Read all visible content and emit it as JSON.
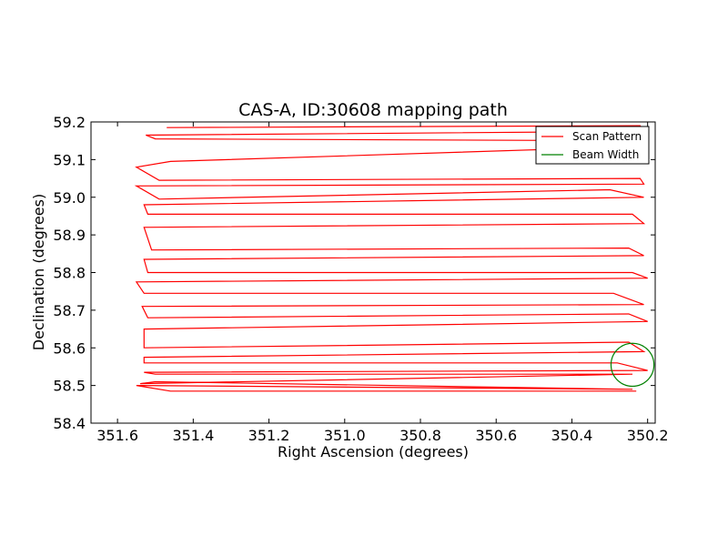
{
  "chart_data": {
    "type": "line",
    "title": "CAS-A, ID:30608 mapping path",
    "xlabel": "Right Ascension (degrees)",
    "ylabel": "Declination (degrees)",
    "xlim": [
      351.67,
      350.18
    ],
    "ylim": [
      58.4,
      59.2
    ],
    "x_ticks": [
      351.6,
      351.4,
      351.2,
      351.0,
      350.8,
      350.6,
      350.4,
      350.2
    ],
    "x_tick_labels": [
      "351.6",
      "351.4",
      "351.2",
      "351.0",
      "350.8",
      "350.6",
      "350.4",
      "350.2"
    ],
    "y_ticks": [
      58.4,
      58.5,
      58.6,
      58.7,
      58.8,
      58.9,
      59.0,
      59.1,
      59.2
    ],
    "y_tick_labels": [
      "58.4",
      "58.5",
      "58.6",
      "58.7",
      "58.8",
      "58.9",
      "59.0",
      "59.1",
      "59.2"
    ],
    "grid": false,
    "legend": {
      "position": "top-right",
      "entries": [
        "Scan Pattern",
        "Beam Width"
      ]
    },
    "colors": {
      "scan": "#ff0000",
      "beam": "#008000"
    },
    "series": [
      {
        "name": "Scan Pattern",
        "x": [
          351.47,
          350.22,
          350.21,
          351.525,
          351.5,
          350.22,
          350.22,
          351.46,
          351.55,
          351.49,
          350.22,
          350.21,
          351.55,
          351.49,
          350.3,
          350.21,
          351.53,
          351.52,
          350.24,
          350.21,
          351.53,
          351.51,
          350.25,
          350.21,
          351.53,
          351.52,
          350.24,
          350.2,
          351.55,
          351.53,
          350.29,
          350.21,
          351.535,
          351.52,
          350.25,
          350.2,
          351.53,
          351.53,
          350.25,
          350.21,
          351.53,
          351.53,
          350.28,
          350.2,
          351.53,
          351.5,
          350.24,
          351.54,
          351.5,
          350.24,
          351.55,
          351.46,
          350.23
        ],
        "y": [
          59.185,
          59.19,
          59.175,
          59.165,
          59.155,
          59.15,
          59.135,
          59.095,
          59.08,
          59.045,
          59.05,
          59.035,
          59.03,
          58.995,
          59.02,
          59.0,
          58.98,
          58.955,
          58.955,
          58.93,
          58.92,
          58.86,
          58.865,
          58.845,
          58.835,
          58.8,
          58.8,
          58.785,
          58.775,
          58.745,
          58.745,
          58.715,
          58.71,
          58.68,
          58.69,
          58.67,
          58.65,
          58.6,
          58.615,
          58.59,
          58.575,
          58.56,
          58.56,
          58.54,
          58.535,
          58.53,
          58.53,
          58.505,
          58.51,
          58.49,
          58.5,
          58.485,
          58.485
        ]
      },
      {
        "name": "Beam Width",
        "shape": "circle",
        "center": [
          350.24,
          58.555
        ],
        "radius_dec": 0.057
      }
    ]
  }
}
